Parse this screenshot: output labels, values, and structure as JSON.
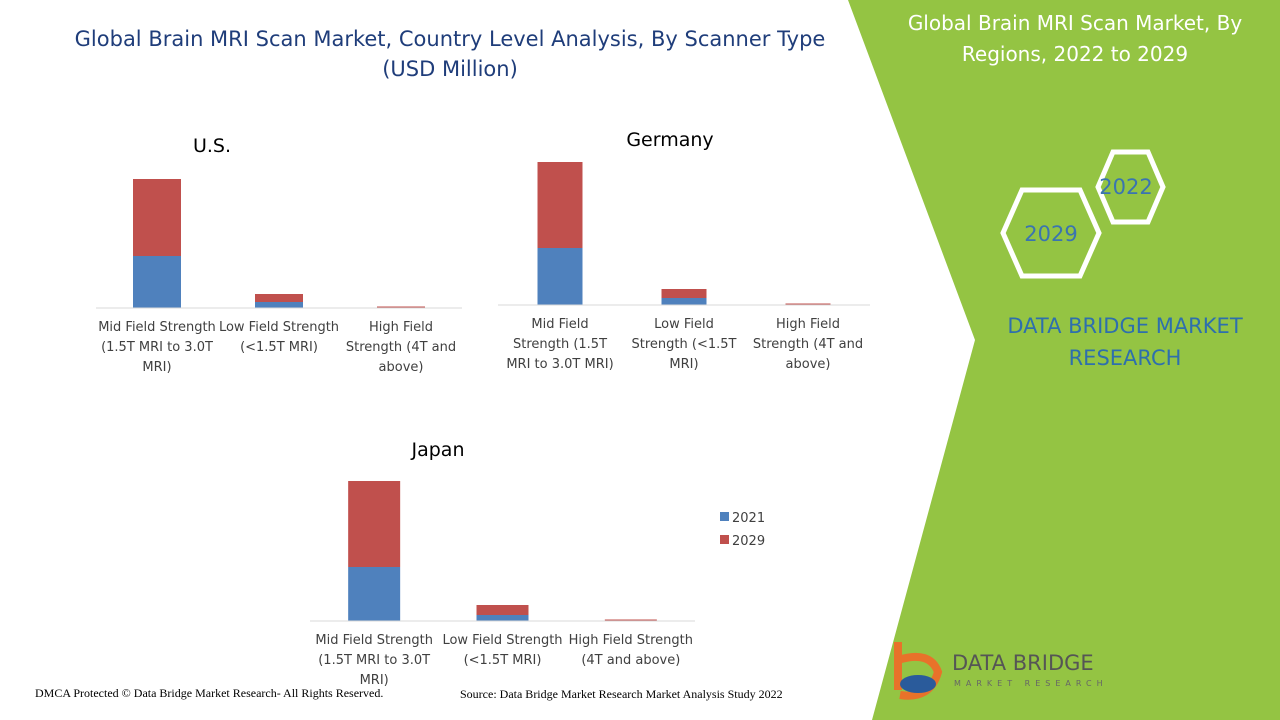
{
  "page": {
    "header": "Global Brain MRI Scan Market, Country Level Analysis, By Scanner Type (USD Million)",
    "side_title": "Global Brain MRI Scan Market, By Regions, 2022 to 2029",
    "hex_labels": [
      "2022",
      "2029"
    ],
    "brand": "DATA BRIDGE MARKET RESEARCH",
    "logo": {
      "name": "DATA BRIDGE",
      "tagline": "MARKET RESEARCH"
    },
    "footer_left": "DMCA Protected © Data Bridge Market Research- All Rights Reserved.",
    "footer_right": "Source: Data Bridge Market Research Market Analysis Study 2022"
  },
  "chart_data": [
    {
      "type": "bar",
      "stacked": true,
      "title": "U.S.",
      "categories": [
        "Mid Field Strength (1.5T MRI to 3.0T MRI)",
        "Low Field Strength (<1.5T MRI)",
        "High Field Strength (4T and above)"
      ],
      "ylim": [
        0,
        150
      ],
      "series": [
        {
          "color": "#4f81bd",
          "values": [
            52,
            6,
            0.5
          ]
        },
        {
          "color": "#c0504d",
          "values": [
            77,
            8,
            1
          ]
        }
      ]
    },
    {
      "type": "bar",
      "stacked": true,
      "title": "Germany",
      "categories": [
        "Mid Field Strength (1.5T MRI to 3.0T MRI)",
        "Low Field Strength (<1.5T MRI)",
        "High Field Strength (4T and above)"
      ],
      "ylim": [
        0,
        150
      ],
      "series": [
        {
          "color": "#4f81bd",
          "values": [
            57,
            7,
            0.5
          ]
        },
        {
          "color": "#c0504d",
          "values": [
            86,
            9,
            1
          ]
        }
      ]
    },
    {
      "type": "bar",
      "stacked": true,
      "title": "Japan",
      "categories": [
        "Mid Field Strength (1.5T MRI to 3.0T MRI)",
        "Low Field Strength (<1.5T MRI)",
        "High Field Strength (4T and above)"
      ],
      "ylim": [
        0,
        150
      ],
      "legend": "right",
      "series": [
        {
          "name": "2021",
          "color": "#4f81bd",
          "values": [
            54,
            6,
            0.5
          ]
        },
        {
          "name": "2029",
          "color": "#c0504d",
          "values": [
            86,
            10,
            1
          ]
        }
      ]
    }
  ]
}
